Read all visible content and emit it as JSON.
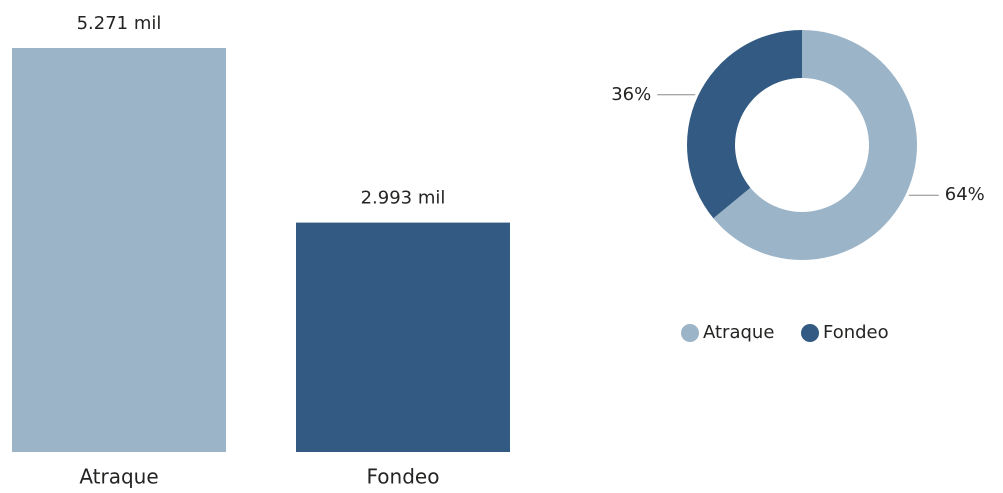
{
  "chart_data": [
    {
      "type": "bar",
      "categories": [
        "Atraque",
        "Fondeo"
      ],
      "values": [
        5271,
        2993
      ],
      "value_labels": [
        "5.271 mil",
        "2.993 mil"
      ],
      "colors": [
        "#9bb4c8",
        "#325a82"
      ]
    },
    {
      "type": "donut",
      "categories": [
        "Atraque",
        "Fondeo"
      ],
      "values": [
        64,
        36
      ],
      "value_labels": [
        "64%",
        "36%"
      ],
      "colors": [
        "#9bb4c8",
        "#325a82"
      ],
      "legend": "bottom"
    }
  ]
}
